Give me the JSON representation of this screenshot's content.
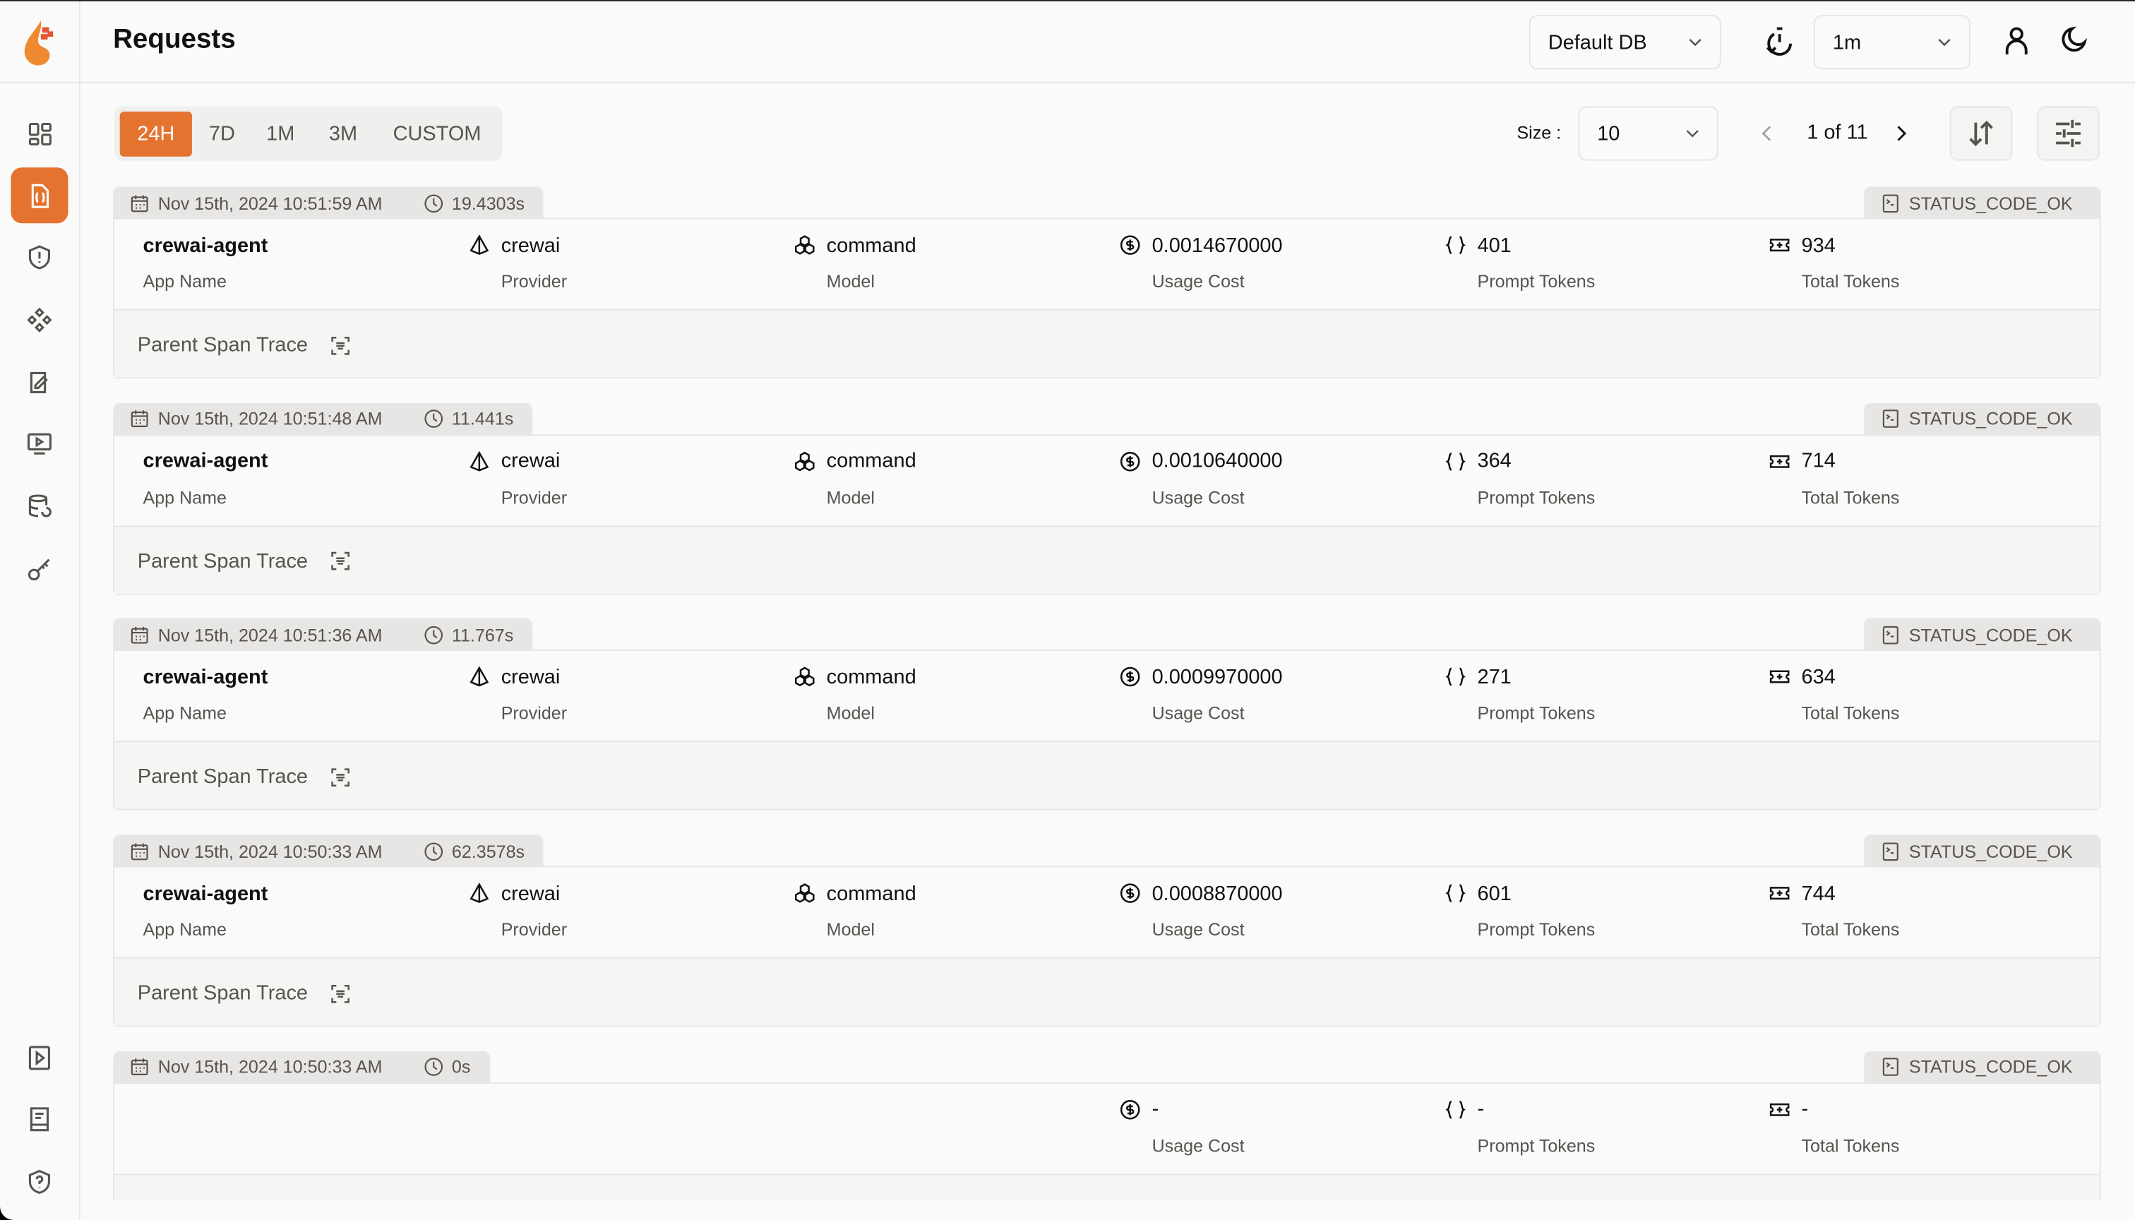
{
  "header": {
    "title": "Requests",
    "db_select": "Default DB",
    "refresh_select": "1m"
  },
  "colors": {
    "accent": "#e3732f"
  },
  "sidebar": {
    "items": [
      {
        "icon": "dashboard-icon"
      },
      {
        "icon": "request-file-icon",
        "active": true
      },
      {
        "icon": "shield-alert-icon"
      },
      {
        "icon": "components-icon"
      },
      {
        "icon": "prompt-icon"
      },
      {
        "icon": "openground-icon"
      },
      {
        "icon": "database-icon"
      },
      {
        "icon": "key-icon"
      }
    ],
    "bottom": [
      {
        "icon": "video-icon"
      },
      {
        "icon": "docs-icon"
      },
      {
        "icon": "shield-question-icon"
      }
    ]
  },
  "filters": {
    "tabs": [
      "24H",
      "7D",
      "1M",
      "3M",
      "CUSTOM"
    ],
    "active": "24H"
  },
  "pagination": {
    "size_label": "Size :",
    "size_value": "10",
    "page_text": "1 of 11"
  },
  "labels": {
    "app_name": "App Name",
    "provider": "Provider",
    "model": "Model",
    "usage_cost": "Usage Cost",
    "prompt_tokens": "Prompt Tokens",
    "total_tokens": "Total Tokens",
    "parent_span_trace": "Parent Span Trace"
  },
  "requests": [
    {
      "date": "Nov 15th, 2024 10:51:59 AM",
      "duration": "19.4303s",
      "status": "STATUS_CODE_OK",
      "app": "crewai-agent",
      "provider": "crewai",
      "model": "command",
      "cost": "0.0014670000",
      "prompt_tokens": "401",
      "total_tokens": "934"
    },
    {
      "date": "Nov 15th, 2024 10:51:48 AM",
      "duration": "11.441s",
      "status": "STATUS_CODE_OK",
      "app": "crewai-agent",
      "provider": "crewai",
      "model": "command",
      "cost": "0.0010640000",
      "prompt_tokens": "364",
      "total_tokens": "714"
    },
    {
      "date": "Nov 15th, 2024 10:51:36 AM",
      "duration": "11.767s",
      "status": "STATUS_CODE_OK",
      "app": "crewai-agent",
      "provider": "crewai",
      "model": "command",
      "cost": "0.0009970000",
      "prompt_tokens": "271",
      "total_tokens": "634"
    },
    {
      "date": "Nov 15th, 2024 10:50:33 AM",
      "duration": "62.3578s",
      "status": "STATUS_CODE_OK",
      "app": "crewai-agent",
      "provider": "crewai",
      "model": "command",
      "cost": "0.0008870000",
      "prompt_tokens": "601",
      "total_tokens": "744"
    },
    {
      "date": "Nov 15th, 2024 10:50:33 AM",
      "duration": "0s",
      "status": "STATUS_CODE_OK",
      "cost": "-",
      "prompt_tokens": "-",
      "total_tokens": "-"
    }
  ]
}
